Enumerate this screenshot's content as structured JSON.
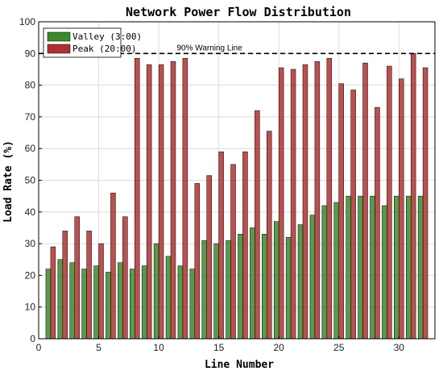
{
  "chart_data": {
    "type": "bar",
    "title": "Network Power Flow Distribution",
    "xlabel": "Line Number",
    "ylabel": "Load Rate (%)",
    "xlim": [
      0,
      33
    ],
    "ylim": [
      0,
      100
    ],
    "xticks": [
      0,
      5,
      10,
      15,
      20,
      25,
      30
    ],
    "yticks": [
      0,
      10,
      20,
      30,
      40,
      50,
      60,
      70,
      80,
      90,
      100
    ],
    "grid": true,
    "legend_position": "top-left",
    "x": [
      1,
      2,
      3,
      4,
      5,
      6,
      7,
      8,
      9,
      10,
      11,
      12,
      13,
      14,
      15,
      16,
      17,
      18,
      19,
      20,
      21,
      22,
      23,
      24,
      25,
      26,
      27,
      28,
      29,
      30,
      31,
      32
    ],
    "series": [
      {
        "name": "Valley (3:00)",
        "color": "#3a8a2a",
        "values": [
          22,
          25,
          24,
          22,
          23,
          21,
          24,
          22,
          23,
          30,
          26,
          23,
          22,
          31,
          30,
          31,
          33,
          35,
          33,
          37,
          32,
          36,
          39,
          42,
          43,
          45,
          45,
          45,
          42,
          45,
          45,
          45
        ]
      },
      {
        "name": "Peak (20:00)",
        "color": "#b03030",
        "values": [
          29,
          34,
          38.5,
          34,
          30,
          46,
          38.5,
          88.5,
          86.5,
          86.5,
          87.5,
          88.5,
          49,
          51.5,
          59,
          55,
          59,
          72,
          65.5,
          85.5,
          85,
          86.5,
          87.5,
          88.5,
          80.5,
          78.5,
          87,
          73,
          86,
          82,
          90,
          85.5
        ]
      }
    ],
    "annotations": [
      {
        "text": "90% Warning Line",
        "y": 90,
        "style": "dashed"
      }
    ]
  }
}
